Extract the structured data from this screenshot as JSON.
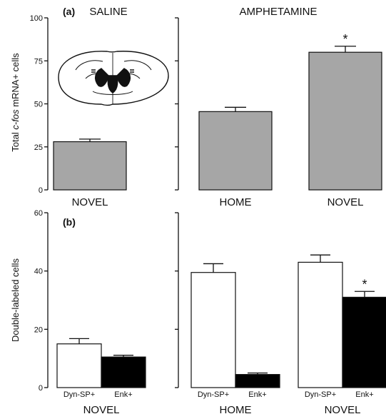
{
  "chart_data": [
    {
      "panel": "(a)",
      "type": "bar",
      "ylabel_parts": [
        "Total ",
        "c-fos",
        " mRNA+ cells"
      ],
      "ylim": [
        0,
        100
      ],
      "yticks": [
        "0",
        "25",
        "50",
        "75",
        "100"
      ],
      "groups": [
        {
          "title": "SALINE",
          "categories": [
            "NOVEL"
          ],
          "values": [
            28
          ],
          "errors": [
            1.5
          ]
        },
        {
          "title": "AMPHETAMINE",
          "categories": [
            "HOME",
            "NOVEL"
          ],
          "values": [
            45.5,
            80
          ],
          "errors": [
            2.5,
            3.5
          ],
          "significance": [
            "",
            "*"
          ]
        }
      ],
      "bar_color": "#a6a6a6"
    },
    {
      "panel": "(b)",
      "type": "bar",
      "ylabel": "Double-labeled cells",
      "ylim": [
        0,
        60
      ],
      "yticks": [
        "0",
        "20",
        "40",
        "60"
      ],
      "series": [
        {
          "name": "Dyn-SP+",
          "color": "#ffffff"
        },
        {
          "name": "Enk+",
          "color": "#000000"
        }
      ],
      "groups": [
        {
          "category": "NOVEL",
          "values": [
            15,
            10.5
          ],
          "errors": [
            1.8,
            0.6
          ],
          "significance": [
            "",
            ""
          ]
        },
        {
          "category": "HOME",
          "values": [
            39.5,
            4.5
          ],
          "errors": [
            3.0,
            0.5
          ],
          "significance": [
            "",
            ""
          ]
        },
        {
          "category": "NOVEL",
          "values": [
            43,
            31
          ],
          "errors": [
            2.5,
            2.0
          ],
          "significance": [
            "",
            "*"
          ]
        }
      ]
    }
  ]
}
